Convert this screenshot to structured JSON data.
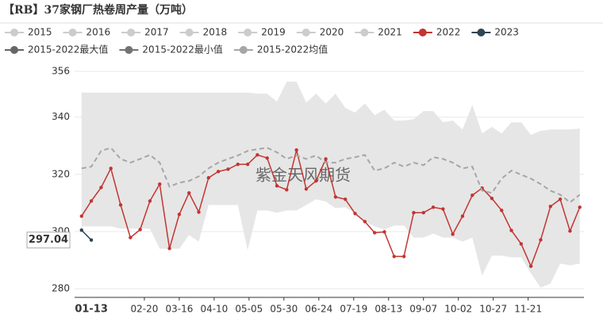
{
  "chart_data": {
    "type": "line",
    "title": "【RB】37家钢厂热卷周产量（万吨）",
    "watermark": "紫金天风期货",
    "legend_inactive": [
      "2015",
      "2016",
      "2017",
      "2018",
      "2019",
      "2020",
      "2021"
    ],
    "legend_inactive_color": "#cccccc",
    "x": [
      "01-06",
      "01-13",
      "01-20",
      "01-27",
      "02-03",
      "02-10",
      "02-17",
      "02-24",
      "03-02",
      "03-09",
      "03-16",
      "03-23",
      "03-30",
      "04-06",
      "04-13",
      "04-20",
      "04-27",
      "05-04",
      "05-11",
      "05-18",
      "05-25",
      "06-01",
      "06-08",
      "06-15",
      "06-22",
      "06-29",
      "07-06",
      "07-13",
      "07-20",
      "07-27",
      "08-03",
      "08-10",
      "08-17",
      "08-24",
      "08-31",
      "09-07",
      "09-14",
      "09-21",
      "09-28",
      "10-05",
      "10-12",
      "10-19",
      "10-26",
      "11-02",
      "11-09",
      "11-16",
      "11-23",
      "11-30",
      "12-07",
      "12-14",
      "12-21",
      "12-28"
    ],
    "xlim": [
      "01-01",
      "12-31"
    ],
    "xticks": [
      "02-20",
      "03-16",
      "04-10",
      "05-05",
      "05-30",
      "06-24",
      "07-19",
      "08-13",
      "09-07",
      "10-02",
      "10-27",
      "11-21"
    ],
    "ylim": [
      277,
      356
    ],
    "yticks": [
      280,
      300,
      320,
      340,
      356
    ],
    "grid": true,
    "band_color": "#e6e6e6",
    "series": [
      {
        "name": "2022",
        "color": "#c23531",
        "markers": true,
        "values": [
          305.4,
          310.7,
          315.4,
          322.1,
          309.3,
          297.9,
          300.7,
          310.7,
          316.6,
          294.1,
          306.0,
          313.5,
          306.8,
          318.8,
          321.0,
          321.8,
          323.5,
          323.5,
          326.8,
          325.7,
          316.0,
          314.6,
          328.5,
          314.9,
          317.7,
          325.4,
          312.1,
          311.3,
          306.3,
          303.5,
          299.6,
          299.9,
          291.3,
          291.3,
          306.6,
          306.6,
          308.5,
          307.9,
          299.1,
          305.4,
          312.7,
          315.2,
          311.6,
          307.4,
          300.4,
          295.7,
          287.9,
          297.1,
          308.8,
          311.3,
          300.2,
          308.5
        ]
      },
      {
        "name": "2023",
        "color": "#2f4554",
        "markers": true,
        "values": [
          300.5,
          297.04,
          null,
          null,
          null,
          null,
          null,
          null,
          null,
          null,
          null,
          null,
          null,
          null,
          null,
          null,
          null,
          null,
          null,
          null,
          null,
          null,
          null,
          null,
          null,
          null,
          null,
          null,
          null,
          null,
          null,
          null,
          null,
          null,
          null,
          null,
          null,
          null,
          null,
          null,
          null,
          null,
          null,
          null,
          null,
          null,
          null,
          null,
          null,
          null,
          null,
          null
        ]
      },
      {
        "name": "2015-2022最大值",
        "color": "#666666",
        "band": "upper",
        "values": [
          348.6,
          348.6,
          348.6,
          348.6,
          348.6,
          348.6,
          348.6,
          348.6,
          348.6,
          348.6,
          348.6,
          348.6,
          348.6,
          348.6,
          348.6,
          348.6,
          348.6,
          348.6,
          348.2,
          348.2,
          345.4,
          352.4,
          352.4,
          345.1,
          348.2,
          344.8,
          348.2,
          343.2,
          341.6,
          344.8,
          340.7,
          342.6,
          338.8,
          338.8,
          339.3,
          342.1,
          342.1,
          338.2,
          338.8,
          335.7,
          344.3,
          334.3,
          336.6,
          334.3,
          338.2,
          338.2,
          333.8,
          335.2,
          335.7,
          335.7,
          335.7,
          336.0
        ]
      },
      {
        "name": "2015-2022最小值",
        "color": "#737373",
        "band": "lower",
        "values": [
          301.8,
          301.8,
          301.8,
          301.8,
          301.0,
          301.0,
          301.0,
          301.0,
          294.0,
          294.0,
          294.0,
          298.8,
          296.5,
          309.3,
          309.3,
          309.3,
          309.3,
          293.5,
          307.4,
          307.4,
          306.6,
          307.4,
          307.4,
          309.3,
          311.3,
          310.5,
          308.2,
          308.5,
          306.3,
          303.5,
          301.8,
          300.7,
          302.1,
          302.1,
          297.9,
          297.9,
          299.3,
          297.9,
          297.9,
          296.5,
          297.9,
          284.6,
          291.6,
          291.6,
          291.0,
          291.0,
          285.4,
          280.4,
          281.8,
          288.8,
          288.2,
          288.8
        ]
      },
      {
        "name": "2015-2022均值",
        "color": "#a6a6a6",
        "dashed": true,
        "values": [
          322.1,
          322.7,
          328.2,
          329.3,
          325.4,
          324.1,
          325.4,
          326.8,
          324.1,
          315.7,
          317.1,
          317.7,
          319.3,
          322.1,
          324.1,
          325.4,
          326.6,
          328.2,
          328.8,
          329.3,
          327.7,
          325.4,
          326.6,
          325.4,
          326.6,
          324.1,
          324.1,
          325.4,
          326.0,
          326.8,
          321.3,
          322.1,
          324.1,
          322.7,
          324.1,
          323.2,
          326.0,
          325.4,
          324.1,
          322.1,
          322.7,
          314.3,
          313.5,
          318.5,
          321.3,
          319.9,
          318.5,
          316.6,
          314.3,
          312.9,
          310.2,
          312.9
        ]
      }
    ],
    "axis_pointer": {
      "x": "01-13",
      "y": 297.04
    }
  }
}
